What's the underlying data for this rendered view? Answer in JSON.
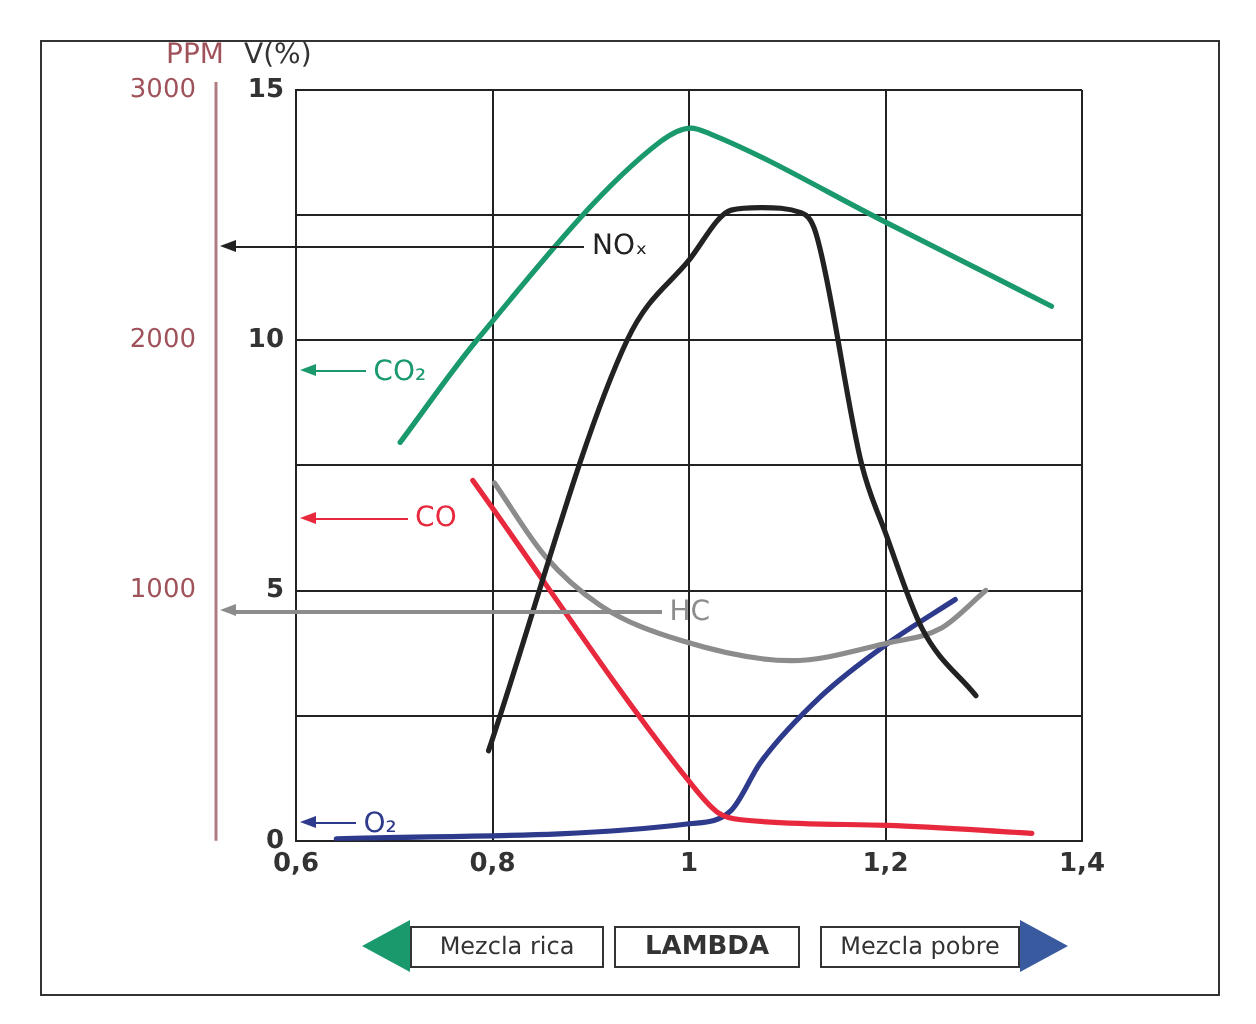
{
  "chart_data": {
    "type": "line",
    "xlabel": "LAMBDA",
    "ylabel": "V(%)",
    "y2label": "PPM",
    "xlim": [
      0.6,
      1.4
    ],
    "xticks": [
      {
        "value": 0.6,
        "label": "0,6"
      },
      {
        "value": 0.8,
        "label": "0,8"
      },
      {
        "value": 1,
        "label": "1"
      },
      {
        "value": 1.2,
        "label": "1,2"
      },
      {
        "value": 1.4,
        "label": "1,4"
      }
    ],
    "ylim": [
      0,
      15
    ],
    "yticks": [
      0,
      {
        "value": 2.5,
        "label": null
      },
      5,
      {
        "value": 7.5,
        "label": null
      },
      10,
      {
        "value": 12.5,
        "label": null
      },
      15
    ],
    "y2lim": [
      0,
      3000
    ],
    "y2ticks": [
      1000,
      2000,
      3000
    ],
    "grid": true,
    "legend": "left",
    "marker": "none",
    "line_style": "solid",
    "series": [
      {
        "name": "CO₂",
        "color": "#1a9a6c",
        "x": [
          0.706,
          0.784,
          0.971,
          1.002,
          1.022,
          1.2,
          1.369
        ],
        "values": [
          7.96,
          10.0,
          13.97,
          14.24,
          14.12,
          12.36,
          10.68
        ]
      },
      {
        "name": "NOₓ",
        "color": "#222222",
        "axis": "y2",
        "x": [
          0.796,
          0.937,
          1.0,
          1.043,
          1.073,
          1.114,
          1.129,
          1.176,
          1.2,
          1.237,
          1.292
        ],
        "values": [
          360,
          2000,
          2320,
          2520,
          2530,
          2510,
          2430,
          1500,
          1230,
          850,
          580
        ]
      },
      {
        "name": "CO",
        "color": "#e8283c",
        "x": [
          0.78,
          1.0,
          1.029,
          1.053,
          1.202,
          1.349
        ],
        "values": [
          7.2,
          1.19,
          0.57,
          0.42,
          0.31,
          0.15
        ]
      },
      {
        "name": "HC",
        "color": "#8c8c8c",
        "axis": "y2",
        "x": [
          0.802,
          0.853,
          0.91,
          0.992,
          1.104,
          1.202,
          1.257,
          1.302
        ],
        "values": [
          1430,
          1140,
          940,
          800,
          720,
          790,
          850,
          1000
        ]
      },
      {
        "name": "O₂",
        "color": "#2e3a8c",
        "x": [
          0.641,
          1.0,
          1.043,
          1.073,
          1.135,
          1.202,
          1.271
        ],
        "values": [
          0.04,
          0.34,
          0.61,
          1.57,
          2.9,
          3.94,
          4.82
        ]
      }
    ],
    "annotations": [
      "Mezcla rica",
      "Mezcla pobre"
    ]
  }
}
